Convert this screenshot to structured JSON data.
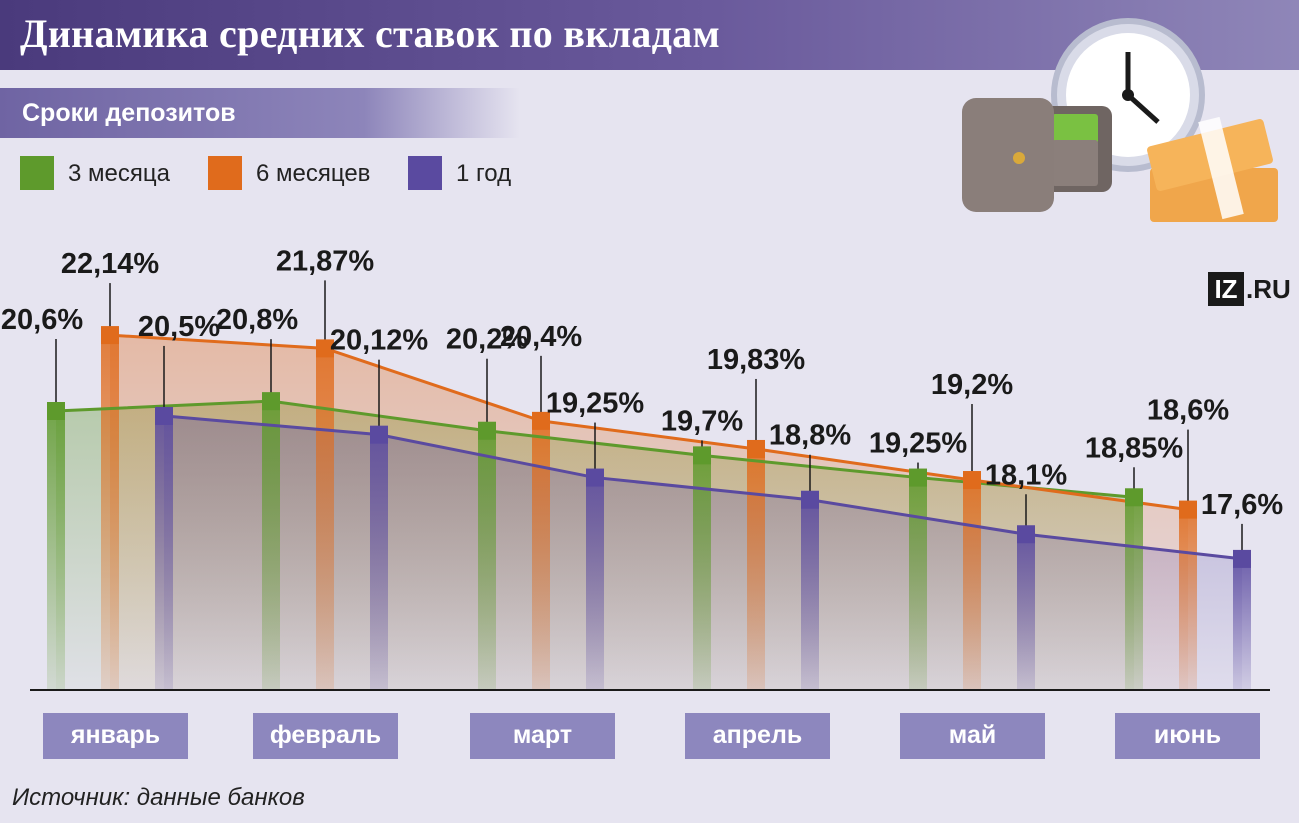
{
  "title": "Динамика средних ставок по вкладам",
  "subtitle": "Сроки депозитов",
  "source": "Источник: данные банков",
  "logo": {
    "box": "IZ",
    "text": ".RU"
  },
  "colors": {
    "three_months": "#5e9a2c",
    "six_months": "#e06b1c",
    "one_year": "#5a4aa0",
    "month_badge": "#8d87be"
  },
  "legend": [
    {
      "label": "3 месяца",
      "color": "#5e9a2c"
    },
    {
      "label": "6 месяцев",
      "color": "#e06b1c"
    },
    {
      "label": "1 год",
      "color": "#5a4aa0"
    }
  ],
  "months": [
    "январь",
    "февраль",
    "март",
    "апрель",
    "май",
    "июнь"
  ],
  "chart_data": {
    "type": "line",
    "categories": [
      "январь",
      "февраль",
      "март",
      "апрель",
      "май",
      "июнь"
    ],
    "series": [
      {
        "name": "3 месяца",
        "values": [
          20.6,
          20.8,
          20.2,
          19.7,
          19.25,
          18.85
        ],
        "labels": [
          "20,6%",
          "20,8%",
          "20,2%",
          "19,7%",
          "19,25%",
          "18,85%"
        ]
      },
      {
        "name": "6 месяцев",
        "values": [
          22.14,
          21.87,
          20.4,
          19.83,
          19.2,
          18.6
        ],
        "labels": [
          "22,14%",
          "21,87%",
          "20,4%",
          "19,83%",
          "19,2%",
          "18,6%"
        ]
      },
      {
        "name": "1 год",
        "values": [
          20.5,
          20.12,
          19.25,
          18.8,
          18.1,
          17.6
        ],
        "labels": [
          "20,5%",
          "20,12%",
          "19,25%",
          "18,8%",
          "18,1%",
          "17,6%"
        ]
      }
    ],
    "grid": false,
    "legend": "top-left"
  }
}
